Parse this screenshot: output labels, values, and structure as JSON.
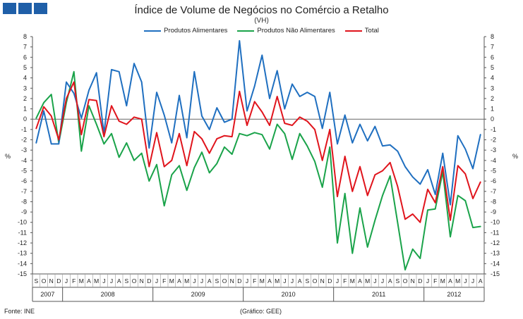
{
  "header": {
    "title": "Índice de Volume de Negócios no Comércio a Retalho",
    "subtitle": "(VH)"
  },
  "footer": {
    "source": "Fonte: INE",
    "credit": "(Gráfico: GEE)"
  },
  "colors": {
    "brand": "#1f5fa8",
    "alimentares": "#1f6fc0",
    "nao_alimentares": "#1aa34a",
    "total": "#e0141c"
  },
  "chart_data": {
    "type": "line",
    "ylabel_left": "%",
    "ylabel_right": "%",
    "ylim": [
      -15,
      8
    ],
    "yticks": [
      8,
      7,
      6,
      5,
      4,
      3,
      2,
      1,
      0,
      -1,
      -2,
      -3,
      -4,
      -5,
      -6,
      -7,
      -8,
      -9,
      -10,
      -11,
      -12,
      -13,
      -14,
      -15
    ],
    "grid": false,
    "legend_position": "top",
    "months": [
      "S",
      "O",
      "N",
      "D",
      "J",
      "F",
      "M",
      "A",
      "M",
      "J",
      "J",
      "A",
      "S",
      "O",
      "N",
      "D",
      "J",
      "F",
      "M",
      "A",
      "M",
      "J",
      "J",
      "A",
      "S",
      "O",
      "N",
      "D",
      "J",
      "F",
      "M",
      "A",
      "M",
      "J",
      "J",
      "A",
      "S",
      "O",
      "N",
      "D",
      "J",
      "F",
      "M",
      "A",
      "M",
      "J",
      "J",
      "A",
      "S",
      "O",
      "N",
      "D",
      "J",
      "F",
      "M",
      "A",
      "M",
      "J",
      "J",
      "A"
    ],
    "years": [
      {
        "label": "2007",
        "count": 4
      },
      {
        "label": "2008",
        "count": 12
      },
      {
        "label": "2009",
        "count": 12
      },
      {
        "label": "2010",
        "count": 12
      },
      {
        "label": "2011",
        "count": 12
      },
      {
        "label": "2012",
        "count": 8
      }
    ],
    "series": [
      {
        "name": "Produtos Alimentares",
        "color": "#1f6fc0",
        "values": [
          -2.3,
          0.8,
          -2.4,
          -2.4,
          3.6,
          2.5,
          0.1,
          2.8,
          4.5,
          -1.4,
          4.8,
          4.6,
          1.3,
          5.4,
          3.6,
          -2.8,
          2.6,
          0.4,
          -2.3,
          2.3,
          -1.8,
          4.6,
          0.3,
          -1.0,
          1.1,
          -0.3,
          0.0,
          7.6,
          0.8,
          3.2,
          6.2,
          2.0,
          4.7,
          1.0,
          3.4,
          2.2,
          2.6,
          2.2,
          -0.9,
          2.6,
          -2.4,
          0.4,
          -2.3,
          -0.5,
          -2.1,
          -0.7,
          -2.6,
          -2.5,
          -3.1,
          -4.6,
          -5.6,
          -6.3,
          -4.9,
          -7.3,
          -3.3,
          -8.3,
          -1.6,
          -2.9,
          -4.8,
          -1.5
        ]
      },
      {
        "name": "Produtos Não Alimentares",
        "color": "#1aa34a",
        "values": [
          0.1,
          1.6,
          2.4,
          -2.3,
          1.6,
          4.6,
          -3.1,
          1.3,
          -0.5,
          -2.4,
          -1.4,
          -3.7,
          -2.3,
          -4.0,
          -3.3,
          -6.0,
          -4.4,
          -8.4,
          -5.4,
          -4.5,
          -6.9,
          -4.7,
          -3.2,
          -5.2,
          -4.3,
          -2.7,
          -3.4,
          -1.4,
          -1.6,
          -1.3,
          -1.5,
          -2.9,
          -0.5,
          -1.4,
          -3.9,
          -1.4,
          -2.6,
          -4.1,
          -6.6,
          -2.7,
          -12.0,
          -7.2,
          -13.0,
          -8.6,
          -12.4,
          -9.8,
          -7.4,
          -5.5,
          -10.0,
          -14.6,
          -12.6,
          -13.5,
          -8.8,
          -8.7,
          -5.1,
          -11.4,
          -7.4,
          -7.9,
          -10.5,
          -10.4
        ]
      },
      {
        "name": "Total",
        "color": "#e0141c",
        "values": [
          -0.9,
          1.2,
          0.3,
          -2.0,
          2.0,
          3.6,
          -1.5,
          1.9,
          1.8,
          -1.7,
          1.3,
          -0.2,
          -0.5,
          0.2,
          0.0,
          -4.6,
          -1.3,
          -4.6,
          -4.0,
          -1.4,
          -4.5,
          -1.2,
          -1.9,
          -3.3,
          -1.9,
          -1.6,
          -1.7,
          2.7,
          -0.6,
          1.7,
          0.7,
          -0.6,
          2.2,
          -0.4,
          -0.6,
          0.2,
          -0.2,
          -1.0,
          -4.0,
          -1.0,
          -7.5,
          -3.6,
          -7.0,
          -4.6,
          -7.4,
          -5.4,
          -5.0,
          -4.2,
          -6.5,
          -9.7,
          -9.2,
          -10.0,
          -6.8,
          -8.1,
          -4.6,
          -9.8,
          -4.5,
          -5.3,
          -7.7,
          -6.1
        ]
      }
    ]
  }
}
